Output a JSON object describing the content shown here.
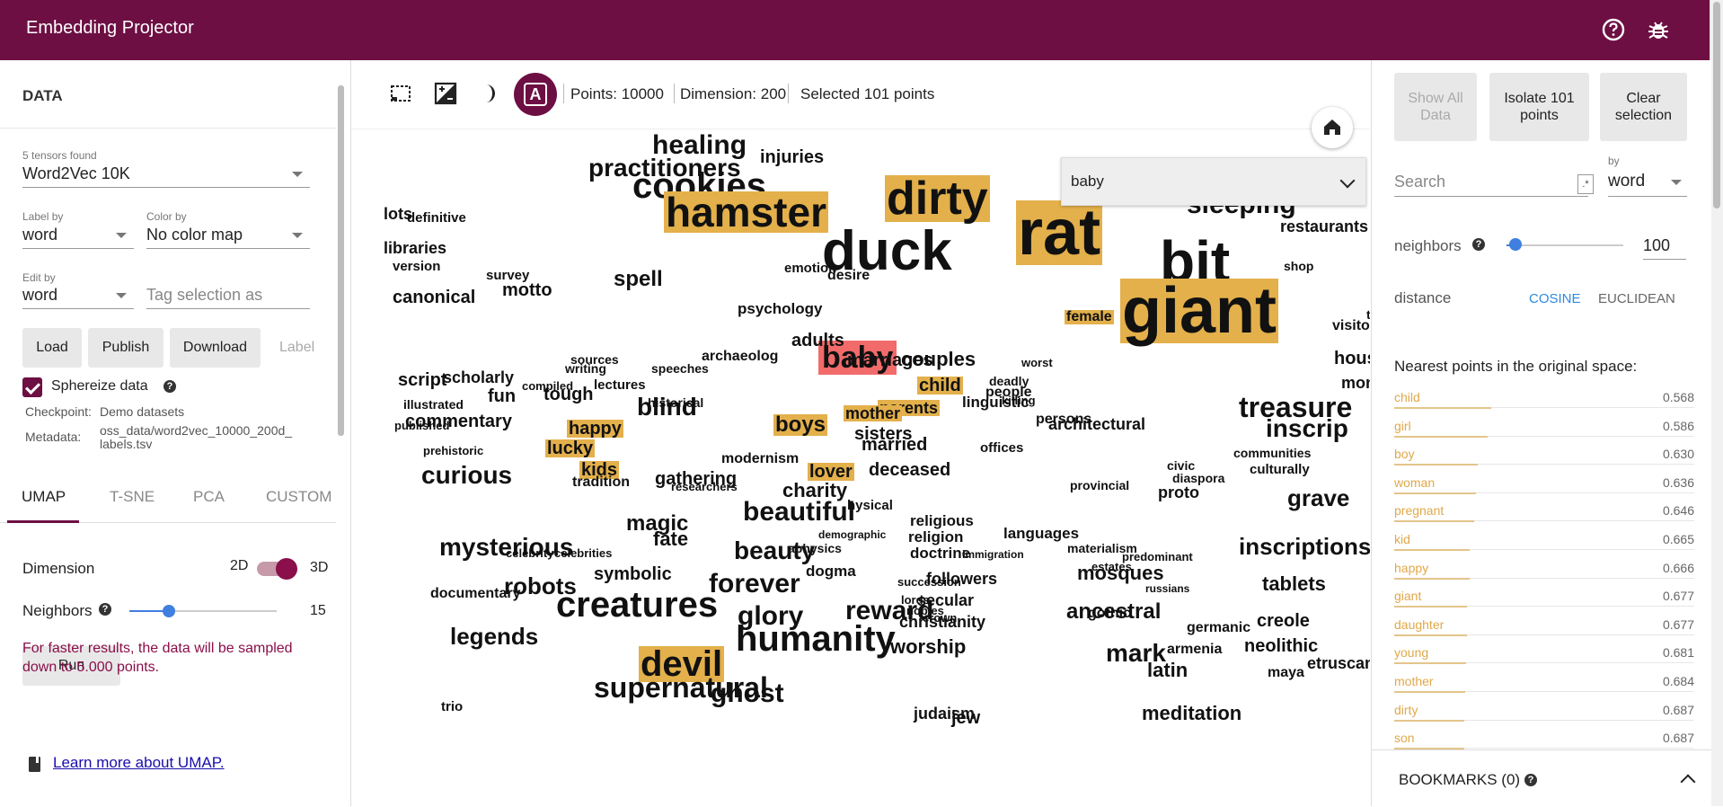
{
  "app": {
    "title": "Embedding Projector",
    "icons": [
      "help-icon",
      "bug-icon"
    ],
    "brand_color": "#6d0f43"
  },
  "data_panel": {
    "title": "DATA",
    "tensors_found": "5 tensors found",
    "tensor": "Word2Vec 10K",
    "label_by_label": "Label by",
    "label_by": "word",
    "color_by_label": "Color by",
    "color_by": "No color map",
    "edit_by_label": "Edit by",
    "edit_by": "word",
    "tag_placeholder": "Tag selection as",
    "buttons": {
      "load": "Load",
      "publish": "Publish",
      "download": "Download",
      "label": "Label"
    },
    "sphereize": "Sphereize data",
    "checkpoint_label": "Checkpoint:",
    "checkpoint_value": "Demo datasets",
    "metadata_label": "Metadata:",
    "metadata_value_line1": "oss_data/word2vec_10000_200d_",
    "metadata_value_line2": "labels.tsv"
  },
  "projection": {
    "tabs": [
      "UMAP",
      "T-SNE",
      "PCA",
      "CUSTOM"
    ],
    "active_tab": "UMAP",
    "dimension_label": "Dimension",
    "dim_2d": "2D",
    "dim_3d": "3D",
    "neighbors_label": "Neighbors",
    "neighbors_value": "15",
    "neighbors_fraction": 0.27,
    "run": "Run",
    "warning": "For faster results, the data will be sampled down to 5.000 points.",
    "learn_more": "Learn more about UMAP."
  },
  "toolbar": {
    "points": "Points: 10000",
    "dimension": "Dimension: 200",
    "selected": "Selected 101 points",
    "icons": [
      "select-box-icon",
      "night-mode-icon",
      "moon-icon",
      "label-mode-icon"
    ]
  },
  "canvas": {
    "search_value": "baby",
    "home_icon": "home-icon",
    "highlight_color": "#e3b04b",
    "selected_color": "#f26b6b"
  },
  "right_panel": {
    "show_all": "Show All Data",
    "isolate": "Isolate 101 points",
    "clear": "Clear selection",
    "search_placeholder": "Search",
    "regex": ".*",
    "by_label": "by",
    "by_value": "word",
    "neighbors_label": "neighbors",
    "neighbors_value": "100",
    "neighbors_fraction": 0.08,
    "distance_label": "distance",
    "cosine": "COSINE",
    "euclidean": "EUCLIDEAN",
    "nn_title": "Nearest points in the original space:",
    "nearest": [
      {
        "word": "child",
        "dist": "0.568"
      },
      {
        "word": "girl",
        "dist": "0.586"
      },
      {
        "word": "boy",
        "dist": "0.630"
      },
      {
        "word": "woman",
        "dist": "0.636"
      },
      {
        "word": "pregnant",
        "dist": "0.646"
      },
      {
        "word": "kid",
        "dist": "0.665"
      },
      {
        "word": "happy",
        "dist": "0.666"
      },
      {
        "word": "giant",
        "dist": "0.677"
      },
      {
        "word": "daughter",
        "dist": "0.677"
      },
      {
        "word": "young",
        "dist": "0.681"
      },
      {
        "word": "mother",
        "dist": "0.684"
      },
      {
        "word": "dirty",
        "dist": "0.687"
      },
      {
        "word": "son",
        "dist": "0.687"
      }
    ],
    "bookmarks": "BOOKMARKS (0)"
  },
  "words": [
    {
      "t": "healing",
      "s": 30
    },
    {
      "t": "injuries",
      "s": 20
    },
    {
      "t": "practitioners",
      "s": 28
    },
    {
      "t": "cookies",
      "s": 40
    },
    {
      "t": "hamster",
      "s": 46,
      "h": 1
    },
    {
      "t": "dirty",
      "s": 52,
      "h": 1
    },
    {
      "t": "rat",
      "s": 72,
      "h": 1
    },
    {
      "t": "bit",
      "s": 64
    },
    {
      "t": "duck",
      "s": 62
    },
    {
      "t": "giant",
      "s": 72,
      "h": 1
    },
    {
      "t": "sleeping",
      "s": 30
    },
    {
      "t": "spell",
      "s": 24
    },
    {
      "t": "lots",
      "s": 18
    },
    {
      "t": "definitive",
      "s": 15
    },
    {
      "t": "libraries",
      "s": 18
    },
    {
      "t": "version",
      "s": 15
    },
    {
      "t": "survey",
      "s": 15
    },
    {
      "t": "canonical",
      "s": 20
    },
    {
      "t": "motto",
      "s": 20
    },
    {
      "t": "psychology",
      "s": 17
    },
    {
      "t": "female",
      "s": 16,
      "h": 1
    },
    {
      "t": "baby",
      "s": 34,
      "sel": 1
    },
    {
      "t": "couples",
      "s": 22
    },
    {
      "t": "child",
      "s": 20,
      "h": 1
    },
    {
      "t": "script",
      "s": 20
    },
    {
      "t": "scholarly",
      "s": 18
    },
    {
      "t": "fun",
      "s": 20
    },
    {
      "t": "tough",
      "s": 20
    },
    {
      "t": "blind",
      "s": 28
    },
    {
      "t": "historical",
      "s": 14
    },
    {
      "t": "archaeolog",
      "s": 16
    },
    {
      "t": "treasure",
      "s": 32
    },
    {
      "t": "commentary",
      "s": 20
    },
    {
      "t": "happy",
      "s": 20,
      "h": 1
    },
    {
      "t": "boys",
      "s": 24,
      "h": 1
    },
    {
      "t": "parents",
      "s": 18,
      "h": 1
    },
    {
      "t": "sisters",
      "s": 20
    },
    {
      "t": "lucky",
      "s": 20,
      "h": 1
    },
    {
      "t": "kids",
      "s": 20,
      "h": 1
    },
    {
      "t": "lover",
      "s": 20,
      "h": 1
    },
    {
      "t": "deceased",
      "s": 20
    },
    {
      "t": "architectural",
      "s": 18
    },
    {
      "t": "inscrip",
      "s": 28
    },
    {
      "t": "curious",
      "s": 28
    },
    {
      "t": "gathering",
      "s": 20
    },
    {
      "t": "modernism",
      "s": 16
    },
    {
      "t": "charity",
      "s": 22
    },
    {
      "t": "beautiful",
      "s": 30
    },
    {
      "t": "magic",
      "s": 24
    },
    {
      "t": "mysterious",
      "s": 28
    },
    {
      "t": "fate",
      "s": 22
    },
    {
      "t": "beauty",
      "s": 28
    },
    {
      "t": "religious",
      "s": 17
    },
    {
      "t": "religion",
      "s": 17
    },
    {
      "t": "doctrine",
      "s": 17
    },
    {
      "t": "languages",
      "s": 17
    },
    {
      "t": "inscriptions",
      "s": 26
    },
    {
      "t": "tablets",
      "s": 22
    },
    {
      "t": "robots",
      "s": 26
    },
    {
      "t": "creatures",
      "s": 40
    },
    {
      "t": "forever",
      "s": 30
    },
    {
      "t": "glory",
      "s": 30
    },
    {
      "t": "reward",
      "s": 30
    },
    {
      "t": "humanity",
      "s": 40
    },
    {
      "t": "worship",
      "s": 22
    },
    {
      "t": "mosques",
      "s": 22
    },
    {
      "t": "followers",
      "s": 18
    },
    {
      "t": "secular",
      "s": 18
    },
    {
      "t": "christianity",
      "s": 18
    },
    {
      "t": "devil",
      "s": 40,
      "h": 1
    },
    {
      "t": "neolithic",
      "s": 20
    },
    {
      "t": "etruscan",
      "s": 18
    },
    {
      "t": "latin",
      "s": 22
    },
    {
      "t": "dogma",
      "s": 17
    },
    {
      "t": "symbolic",
      "s": 20
    },
    {
      "t": "documentary",
      "s": 16
    },
    {
      "t": "legends",
      "s": 26
    },
    {
      "t": "gothic",
      "s": 16
    },
    {
      "t": "proto",
      "s": 18
    },
    {
      "t": "diaspora",
      "s": 14
    },
    {
      "t": "civic",
      "s": 14
    },
    {
      "t": "communities",
      "s": 14
    },
    {
      "t": "culturally",
      "s": 15
    },
    {
      "t": "provincial",
      "s": 14
    },
    {
      "t": "linguistic",
      "s": 17
    },
    {
      "t": "offices",
      "s": 15
    },
    {
      "t": "demographic",
      "s": 12
    },
    {
      "t": "immigration",
      "s": 12
    },
    {
      "t": "materialism",
      "s": 14
    },
    {
      "t": "estates",
      "s": 13
    },
    {
      "t": "predominant",
      "s": 13
    },
    {
      "t": "ancestral",
      "s": 24
    },
    {
      "t": "grave",
      "s": 26
    },
    {
      "t": "mark",
      "s": 28
    },
    {
      "t": "adults",
      "s": 20
    },
    {
      "t": "mother",
      "s": 18,
      "h": 1
    },
    {
      "t": "restaurants",
      "s": 18
    },
    {
      "t": "shop",
      "s": 14
    },
    {
      "t": "visitors",
      "s": 16
    },
    {
      "t": "tourists",
      "s": 14
    },
    {
      "t": "houses",
      "s": 20
    },
    {
      "t": "monuments",
      "s": 18
    },
    {
      "t": "emotion",
      "s": 15
    },
    {
      "t": "desire",
      "s": 16
    },
    {
      "t": "sources",
      "s": 14
    },
    {
      "t": "lectures",
      "s": 15
    },
    {
      "t": "compiled",
      "s": 13
    },
    {
      "t": "illustrated",
      "s": 14
    },
    {
      "t": "published",
      "s": 13
    },
    {
      "t": "writing",
      "s": 14
    },
    {
      "t": "speeches",
      "s": 14
    },
    {
      "t": "marriages",
      "s": 20
    },
    {
      "t": "worst",
      "s": 13
    },
    {
      "t": "celebrity",
      "s": 13
    },
    {
      "t": "celebrities",
      "s": 13
    },
    {
      "t": "hysical",
      "s": 15
    },
    {
      "t": "aphysics",
      "s": 14
    },
    {
      "t": "lords",
      "s": 13
    },
    {
      "t": "nobles",
      "s": 13
    },
    {
      "t": "succession",
      "s": 13
    },
    {
      "t": "crown",
      "s": 13
    },
    {
      "t": "russians",
      "s": 12
    },
    {
      "t": "creole",
      "s": 20
    },
    {
      "t": "armenia",
      "s": 16
    },
    {
      "t": "trio",
      "s": 15
    },
    {
      "t": "ghost",
      "s": 30
    },
    {
      "t": "supernatural",
      "s": 32
    },
    {
      "t": "meditation",
      "s": 22
    },
    {
      "t": "jew",
      "s": 20
    },
    {
      "t": "judaism",
      "s": 18
    },
    {
      "t": "maya",
      "s": 16
    },
    {
      "t": "germanic",
      "s": 16
    },
    {
      "t": "prehistoric",
      "s": 13
    },
    {
      "t": "tradition",
      "s": 16
    },
    {
      "t": "researchers",
      "s": 13
    },
    {
      "t": "married",
      "s": 20
    },
    {
      "t": "persons",
      "s": 16
    },
    {
      "t": "people",
      "s": 16
    },
    {
      "t": "killing",
      "s": 13
    },
    {
      "t": "deadly",
      "s": 14
    }
  ]
}
